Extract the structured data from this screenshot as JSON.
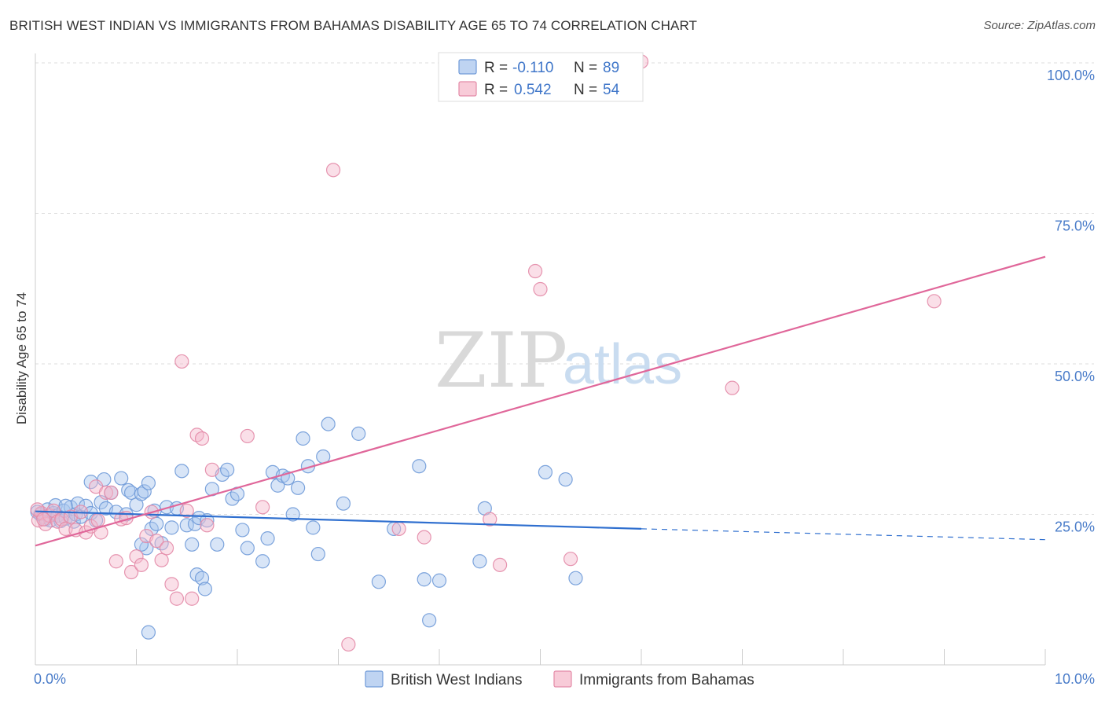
{
  "header": {
    "title": "BRITISH WEST INDIAN VS IMMIGRANTS FROM BAHAMAS DISABILITY AGE 65 TO 74 CORRELATION CHART",
    "source": "Source: ZipAtlas.com"
  },
  "watermark": {
    "zip": "ZIP",
    "atlas": "atlas"
  },
  "colors": {
    "blue_fill": "#a9c6ee",
    "blue_stroke": "#6f9ad8",
    "blue_line": "#2f6fcf",
    "pink_fill": "#f5b9cb",
    "pink_stroke": "#e38aa7",
    "pink_line": "#e0679a",
    "grid": "#dddddd",
    "tick_label": "#4a7cc9"
  },
  "legend": {
    "rows": [
      {
        "r_label": "R =",
        "r_value": "-0.110",
        "n_label": "N =",
        "n_value": "89"
      },
      {
        "r_label": "R =",
        "r_value": "0.542",
        "n_label": "N =",
        "n_value": "54"
      }
    ]
  },
  "chart_data": {
    "type": "scatter",
    "title": "BRITISH WEST INDIAN VS IMMIGRANTS FROM BAHAMAS DISABILITY AGE 65 TO 74 CORRELATION CHART",
    "xlabel": "",
    "ylabel": "Disability Age 65 to 74",
    "xlim": [
      0,
      10
    ],
    "ylim": [
      0,
      100
    ],
    "x_tick_labels": [
      "0.0%",
      "10.0%"
    ],
    "y_tick_labels": [
      "25.0%",
      "50.0%",
      "75.0%",
      "100.0%"
    ],
    "y_ticks": [
      25,
      50,
      75,
      100
    ],
    "legend_position": "top-center",
    "series": [
      {
        "name": "British West Indians",
        "r": -0.11,
        "n": 89,
        "trend": {
          "x0": 0,
          "y0": 25.5,
          "x1": 6.0,
          "y1": 22.6,
          "dash_to_x": 10,
          "dash_to_y": 20.8
        },
        "points": [
          [
            0.02,
            25.4
          ],
          [
            0.05,
            25.0
          ],
          [
            0.08,
            24.6
          ],
          [
            0.1,
            24.2
          ],
          [
            0.12,
            25.8
          ],
          [
            0.15,
            24.0
          ],
          [
            0.18,
            25.2
          ],
          [
            0.2,
            26.5
          ],
          [
            0.22,
            24.8
          ],
          [
            0.25,
            23.9
          ],
          [
            0.28,
            25.6
          ],
          [
            0.3,
            24.3
          ],
          [
            0.35,
            26.2
          ],
          [
            0.38,
            23.8
          ],
          [
            0.4,
            25.0
          ],
          [
            0.42,
            26.8
          ],
          [
            0.45,
            24.6
          ],
          [
            0.5,
            26.4
          ],
          [
            0.55,
            25.2
          ],
          [
            0.6,
            24.0
          ],
          [
            0.65,
            27.0
          ],
          [
            0.68,
            30.8
          ],
          [
            0.7,
            26.0
          ],
          [
            0.75,
            28.6
          ],
          [
            0.8,
            25.4
          ],
          [
            0.85,
            31.0
          ],
          [
            0.9,
            25.0
          ],
          [
            0.92,
            29.0
          ],
          [
            0.95,
            28.6
          ],
          [
            1.0,
            26.6
          ],
          [
            1.05,
            28.4
          ],
          [
            1.08,
            28.8
          ],
          [
            1.1,
            19.4
          ],
          [
            1.12,
            30.2
          ],
          [
            1.15,
            22.6
          ],
          [
            1.18,
            25.6
          ],
          [
            1.2,
            23.4
          ],
          [
            1.25,
            20.2
          ],
          [
            1.3,
            26.2
          ],
          [
            1.35,
            22.8
          ],
          [
            1.4,
            26.0
          ],
          [
            1.45,
            32.2
          ],
          [
            1.5,
            23.2
          ],
          [
            1.55,
            20.0
          ],
          [
            1.58,
            23.4
          ],
          [
            1.6,
            15.0
          ],
          [
            1.62,
            24.4
          ],
          [
            1.65,
            14.4
          ],
          [
            1.68,
            12.6
          ],
          [
            1.7,
            24.0
          ],
          [
            1.75,
            29.2
          ],
          [
            1.8,
            20.0
          ],
          [
            1.85,
            31.6
          ],
          [
            1.9,
            32.4
          ],
          [
            1.95,
            27.6
          ],
          [
            2.0,
            28.4
          ],
          [
            2.05,
            22.4
          ],
          [
            2.1,
            19.4
          ],
          [
            2.25,
            17.2
          ],
          [
            2.3,
            21.0
          ],
          [
            2.35,
            32.0
          ],
          [
            2.4,
            29.8
          ],
          [
            2.45,
            31.4
          ],
          [
            2.5,
            31.0
          ],
          [
            2.55,
            25.0
          ],
          [
            2.6,
            29.4
          ],
          [
            2.65,
            37.6
          ],
          [
            2.7,
            33.0
          ],
          [
            2.75,
            22.8
          ],
          [
            2.8,
            18.4
          ],
          [
            2.85,
            34.6
          ],
          [
            2.9,
            40.0
          ],
          [
            3.05,
            26.8
          ],
          [
            3.2,
            38.4
          ],
          [
            3.4,
            13.8
          ],
          [
            3.55,
            22.6
          ],
          [
            3.8,
            33.0
          ],
          [
            3.85,
            14.2
          ],
          [
            3.9,
            7.4
          ],
          [
            4.0,
            14.0
          ],
          [
            4.4,
            17.2
          ],
          [
            1.12,
            5.4
          ],
          [
            1.05,
            20.0
          ],
          [
            0.55,
            30.4
          ],
          [
            0.3,
            26.4
          ],
          [
            4.45,
            26.0
          ],
          [
            5.05,
            32.0
          ],
          [
            5.25,
            30.8
          ],
          [
            5.35,
            14.4
          ]
        ]
      },
      {
        "name": "Immigrants from Bahamas",
        "r": 0.542,
        "n": 54,
        "trend": {
          "x0": 0,
          "y0": 19.8,
          "x1": 10,
          "y1": 67.8
        },
        "points": [
          [
            0.03,
            24.0
          ],
          [
            0.06,
            25.2
          ],
          [
            0.1,
            23.4
          ],
          [
            0.14,
            24.8
          ],
          [
            0.18,
            25.6
          ],
          [
            0.22,
            23.8
          ],
          [
            0.26,
            24.2
          ],
          [
            0.3,
            22.6
          ],
          [
            0.35,
            24.6
          ],
          [
            0.4,
            22.4
          ],
          [
            0.45,
            25.4
          ],
          [
            0.5,
            22.0
          ],
          [
            0.55,
            23.0
          ],
          [
            0.6,
            29.6
          ],
          [
            0.62,
            24.0
          ],
          [
            0.65,
            22.0
          ],
          [
            0.7,
            28.6
          ],
          [
            0.75,
            28.6
          ],
          [
            0.8,
            17.2
          ],
          [
            0.85,
            24.2
          ],
          [
            0.9,
            24.4
          ],
          [
            0.95,
            15.4
          ],
          [
            1.0,
            18.0
          ],
          [
            1.05,
            16.6
          ],
          [
            1.1,
            21.4
          ],
          [
            1.15,
            25.4
          ],
          [
            1.2,
            20.6
          ],
          [
            1.25,
            17.4
          ],
          [
            1.3,
            19.4
          ],
          [
            1.35,
            13.4
          ],
          [
            1.4,
            11.0
          ],
          [
            1.45,
            50.4
          ],
          [
            1.5,
            25.6
          ],
          [
            1.55,
            11.0
          ],
          [
            1.6,
            38.2
          ],
          [
            1.65,
            37.6
          ],
          [
            1.7,
            23.2
          ],
          [
            1.75,
            32.4
          ],
          [
            2.1,
            38.0
          ],
          [
            2.25,
            26.2
          ],
          [
            2.95,
            82.2
          ],
          [
            3.1,
            3.4
          ],
          [
            3.6,
            22.6
          ],
          [
            3.85,
            21.2
          ],
          [
            4.5,
            24.2
          ],
          [
            4.6,
            16.6
          ],
          [
            4.95,
            65.4
          ],
          [
            5.0,
            62.4
          ],
          [
            5.3,
            17.6
          ],
          [
            6.0,
            100.2
          ],
          [
            6.9,
            46.0
          ],
          [
            8.9,
            60.4
          ],
          [
            0.02,
            25.8
          ],
          [
            0.08,
            24.2
          ]
        ]
      }
    ]
  }
}
